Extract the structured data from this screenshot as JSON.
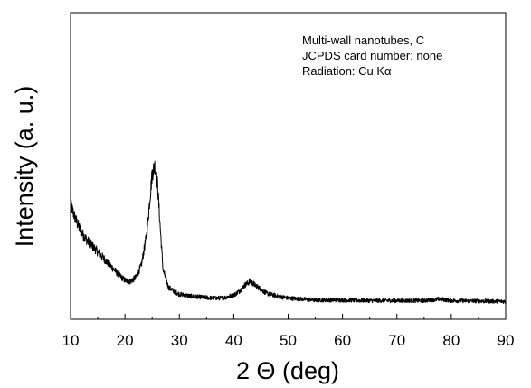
{
  "chart_data": {
    "type": "line",
    "title": "",
    "xlabel": "2 Θ (deg)",
    "ylabel": "Intensity (a. u.)",
    "xlim": [
      10,
      90
    ],
    "ylim": [
      0,
      100
    ],
    "xticks": [
      10,
      20,
      30,
      40,
      50,
      60,
      70,
      80,
      90
    ],
    "xtick_labels": [
      "10",
      "20",
      "30",
      "40",
      "50",
      "60",
      "70",
      "80",
      "90"
    ],
    "yticks_labeled": false,
    "grid": false,
    "annotations": [
      "Multi-wall nanotubes, C",
      "JCPDS card number: none",
      "Radiation: Cu Kα"
    ],
    "series": [
      {
        "color": "#000000",
        "x": [
          10,
          11,
          12,
          13,
          14,
          15,
          16,
          17,
          18,
          19,
          20,
          21,
          22,
          23,
          24,
          25,
          25.5,
          26,
          26.5,
          27,
          28,
          29,
          30,
          32,
          34,
          36,
          38,
          40,
          41,
          42,
          43,
          44,
          45,
          46,
          48,
          50,
          55,
          60,
          65,
          70,
          75,
          78,
          80,
          85,
          90
        ],
        "values": [
          50,
          42,
          36,
          32,
          29,
          26,
          23,
          20,
          17,
          14,
          11.5,
          11,
          13,
          19,
          35,
          66,
          70,
          60,
          38,
          17,
          8,
          6,
          4.5,
          3.5,
          3,
          2.5,
          2.5,
          4,
          6,
          9,
          11,
          9,
          7,
          5,
          3.5,
          2.5,
          1.5,
          1.5,
          1.2,
          1.2,
          1.2,
          2,
          1.2,
          1,
          0.8
        ]
      }
    ]
  }
}
